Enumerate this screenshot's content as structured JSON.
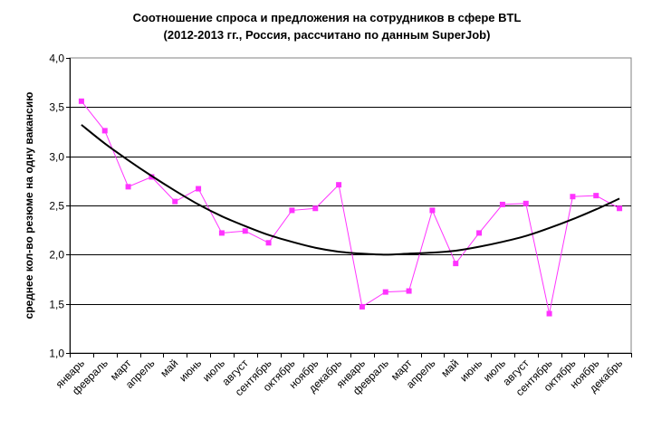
{
  "chart_data": {
    "type": "line",
    "title": "Соотношение спроса и предложения на сотрудников в сфере BTL",
    "subtitle": "(2012-2013 гг., Россия, рассчитано по данным SuperJob)",
    "xlabel": "",
    "ylabel": "среднее кол-во резюме на одну вакансию",
    "ylim": [
      1.0,
      4.0
    ],
    "yticks": [
      "1,0",
      "1,5",
      "2,0",
      "2,5",
      "3,0",
      "3,5",
      "4,0"
    ],
    "grid": true,
    "categories": [
      "январь",
      "февраль",
      "март",
      "апрель",
      "май",
      "июнь",
      "июль",
      "август",
      "сентябрь",
      "октябрь",
      "ноябрь",
      "декабрь",
      "январь",
      "февраль",
      "март",
      "апрель",
      "май",
      "июнь",
      "июль",
      "август",
      "сентябрь",
      "октябрь",
      "ноябрь",
      "декабрь"
    ],
    "series": [
      {
        "values": [
          3.56,
          3.26,
          2.69,
          2.79,
          2.54,
          2.67,
          2.22,
          2.24,
          2.12,
          2.45,
          2.47,
          2.71,
          1.47,
          1.62,
          1.63,
          2.45,
          1.91,
          2.22,
          2.51,
          2.52,
          1.4,
          2.59,
          2.6,
          2.47
        ],
        "color": "#ff33ff",
        "marker": "square"
      },
      {
        "values": [
          3.32,
          3.13,
          2.96,
          2.8,
          2.65,
          2.51,
          2.39,
          2.29,
          2.2,
          2.13,
          2.07,
          2.03,
          2.01,
          2.0,
          2.01,
          2.02,
          2.04,
          2.08,
          2.13,
          2.19,
          2.27,
          2.36,
          2.46,
          2.57
        ],
        "color": "#000000",
        "style": "trend"
      }
    ]
  }
}
